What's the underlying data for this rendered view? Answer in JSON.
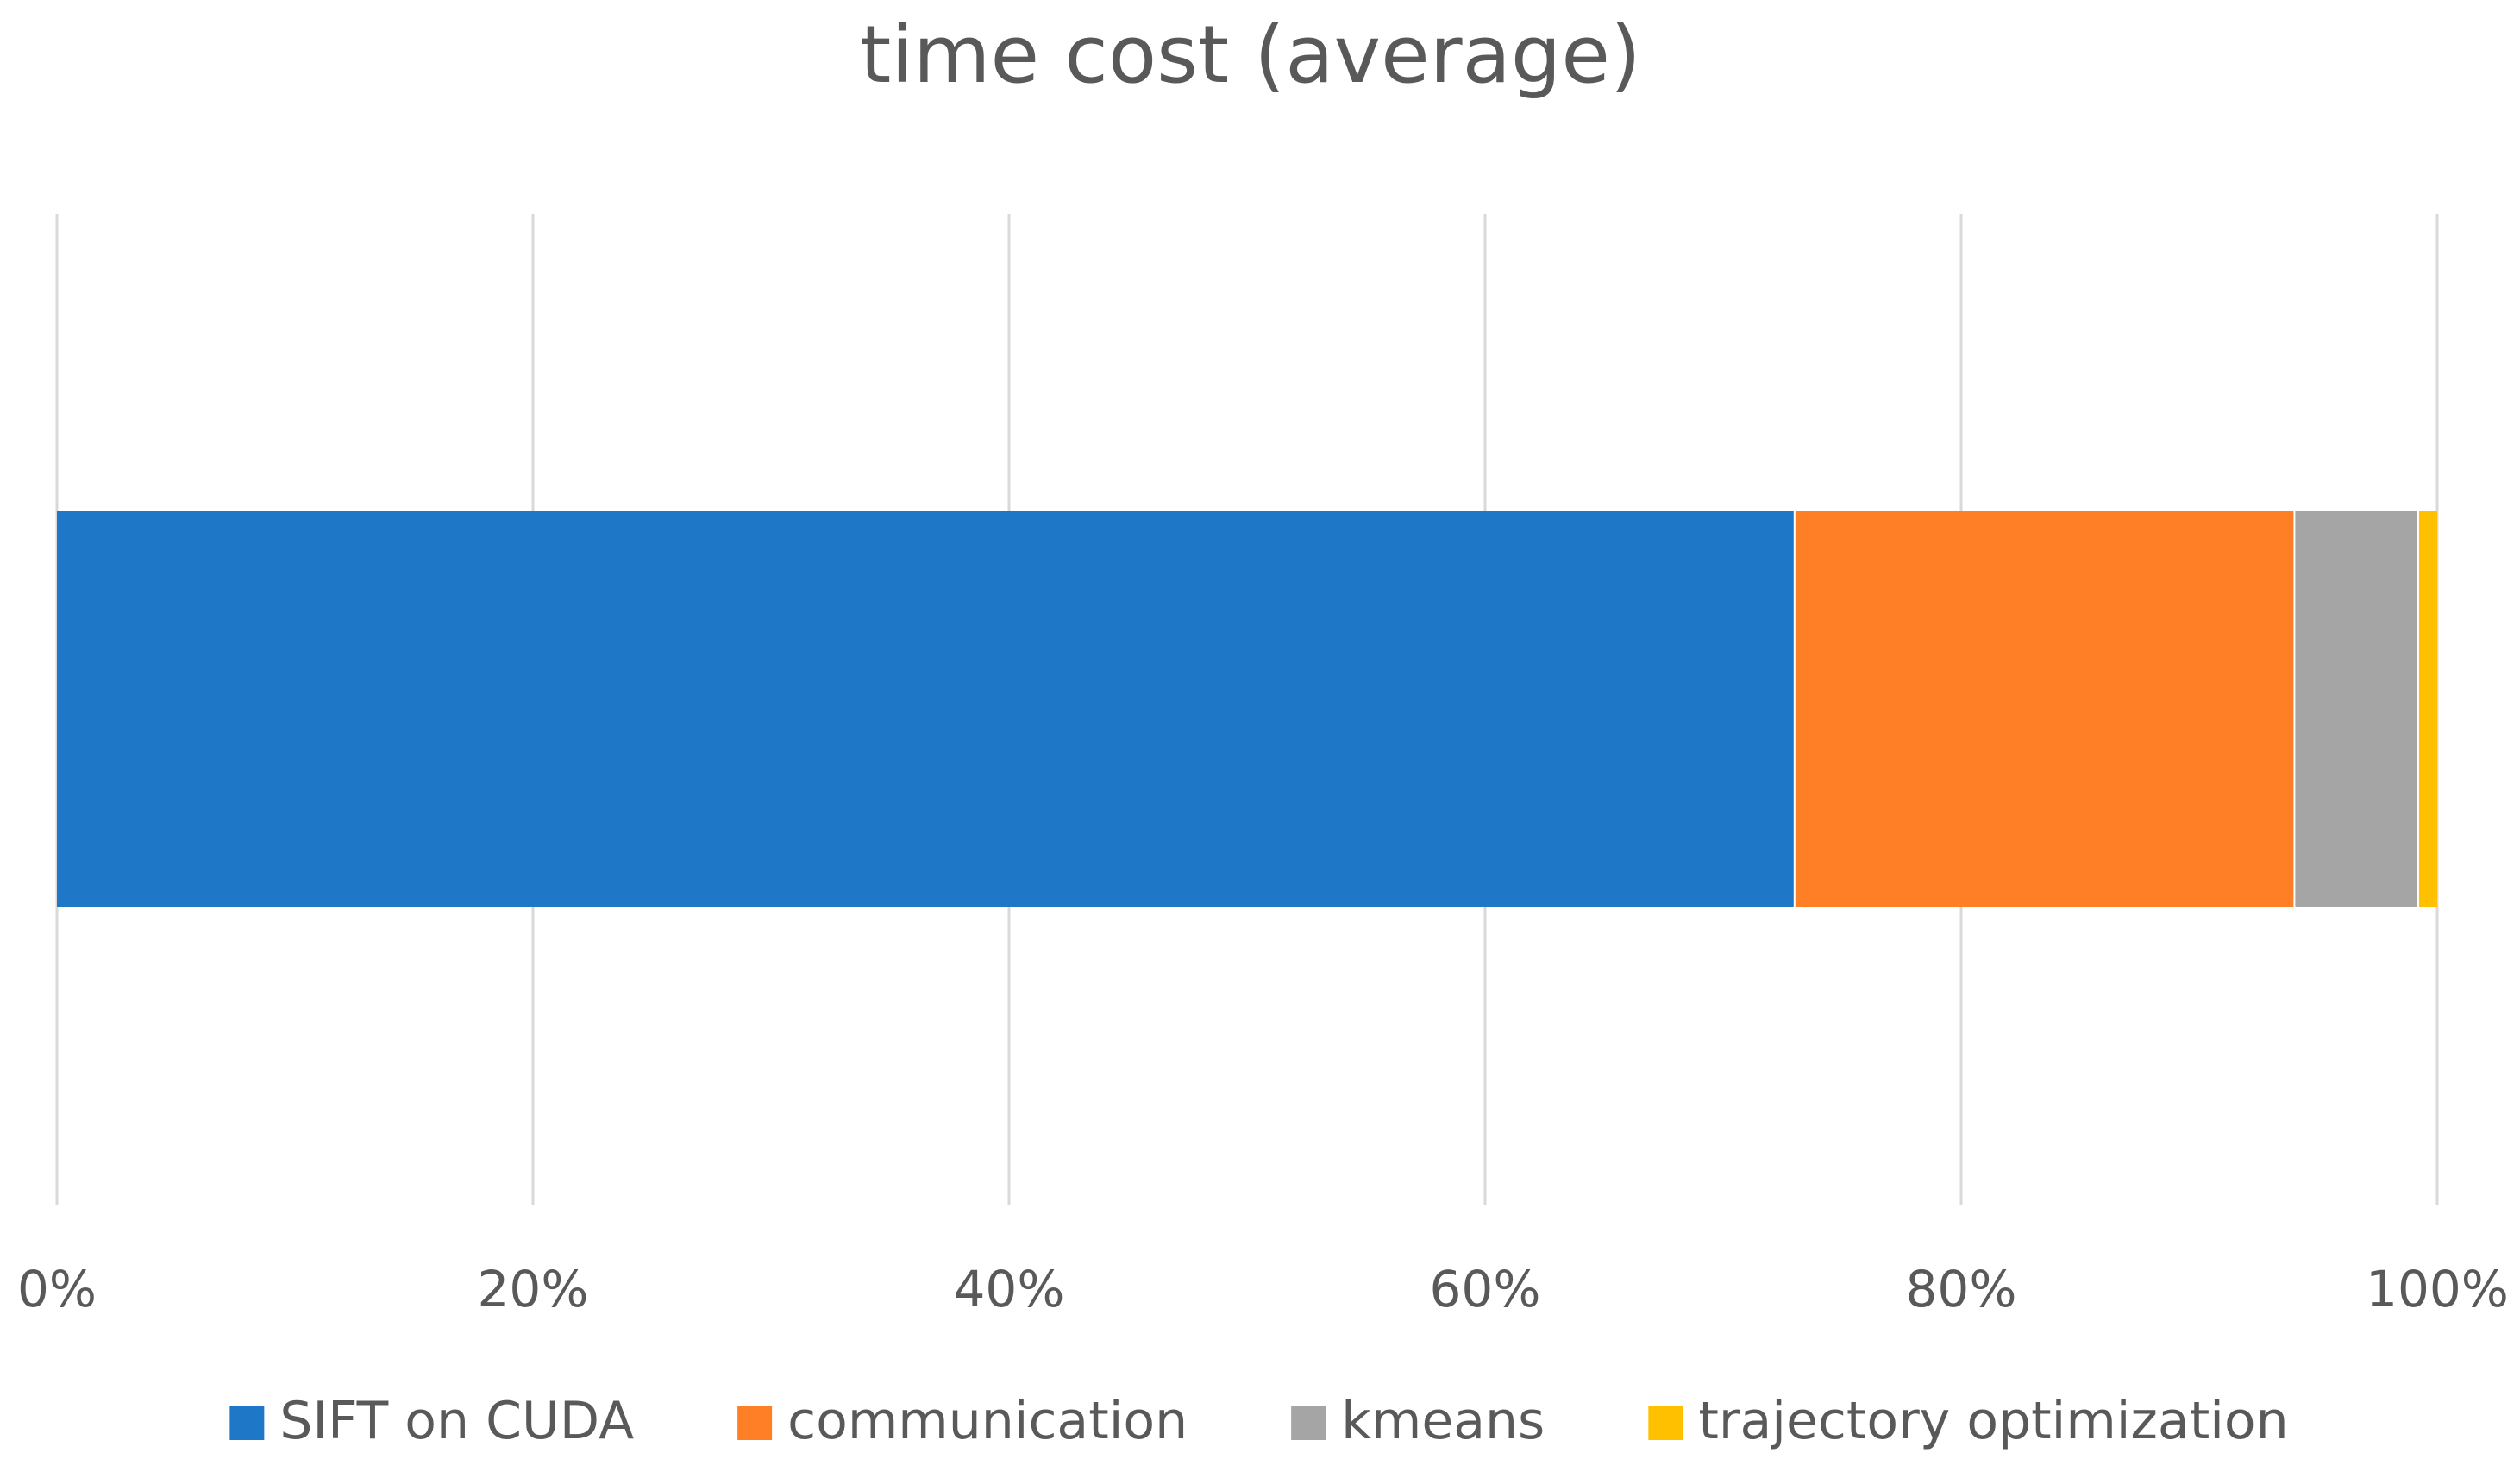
{
  "chart_data": {
    "type": "bar",
    "orientation": "horizontal",
    "stacked": true,
    "normalized_100_percent": true,
    "title": "time cost (average)",
    "xlabel": "",
    "ylabel": "",
    "xlim": [
      0,
      100
    ],
    "x_ticks": [
      0,
      20,
      40,
      60,
      80,
      100
    ],
    "x_tick_labels": [
      "0%",
      "20%",
      "40%",
      "60%",
      "80%",
      "100%"
    ],
    "grid": true,
    "legend_position": "bottom",
    "categories": [
      ""
    ],
    "series": [
      {
        "name": "SIFT on CUDA",
        "color": "#1f77c8",
        "values": [
          73
        ]
      },
      {
        "name": "communication",
        "color": "#ff7f27",
        "values": [
          21
        ]
      },
      {
        "name": "kmeans",
        "color": "#a5a5a5",
        "values": [
          5.2
        ]
      },
      {
        "name": "trajectory optimization",
        "color": "#ffc000",
        "values": [
          0.8
        ]
      }
    ]
  }
}
